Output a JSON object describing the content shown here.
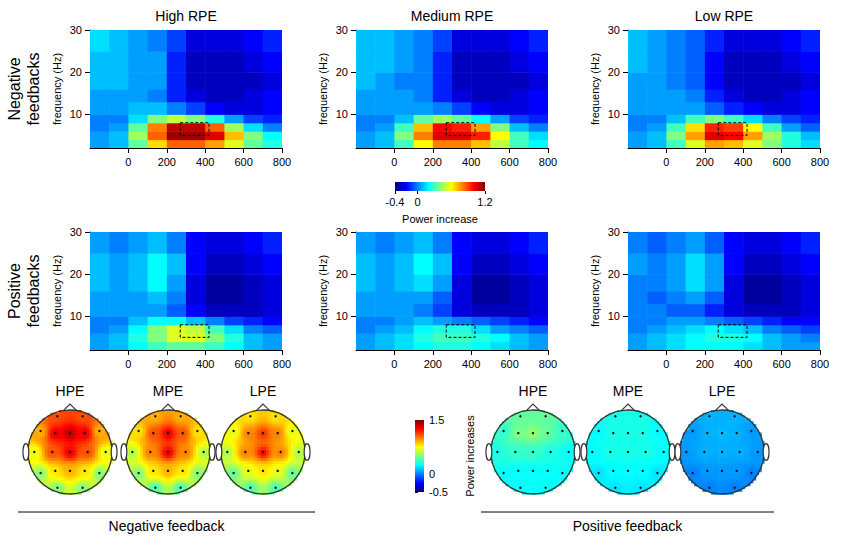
{
  "chart_data": [
    {
      "type": "heatmap",
      "columns": [
        "High RPE",
        "Medium RPE",
        "Low RPE"
      ],
      "rows": [
        "Negative feedbacks",
        "Positive feedbacks"
      ],
      "xlim": [
        -200,
        800
      ],
      "xticks": [
        0,
        200,
        400,
        600,
        800
      ],
      "ylim": [
        2,
        30
      ],
      "yticks": [
        10,
        20,
        30
      ],
      "y_label": "frequency (Hz)",
      "time_edges": [
        -200,
        -100,
        0,
        100,
        200,
        300,
        400,
        500,
        600,
        700,
        800
      ],
      "freq_edges": [
        2,
        4,
        6,
        8,
        10,
        13,
        16,
        20,
        25,
        30
      ],
      "window": {
        "time": [
          270,
          420
        ],
        "freq": [
          5,
          8
        ]
      },
      "colorbar": {
        "label": "Power increase",
        "range": [
          -0.4,
          1.2
        ],
        "ticks": [
          -0.4,
          0,
          1.2
        ]
      },
      "panels": [
        [
          [
            [
              0.05,
              0.1,
              0.35,
              0.65,
              0.85,
              0.85,
              0.75,
              0.55,
              0.35,
              0.25
            ],
            [
              0.05,
              0.1,
              0.45,
              0.85,
              1.15,
              1.15,
              1.05,
              0.7,
              0.4,
              0.2
            ],
            [
              0.0,
              0.05,
              0.35,
              0.8,
              1.1,
              1.1,
              0.85,
              0.45,
              0.15,
              0.0
            ],
            [
              0.0,
              0.0,
              0.15,
              0.4,
              0.5,
              0.4,
              0.25,
              0.05,
              -0.1,
              -0.15
            ],
            [
              0.05,
              0.05,
              0.1,
              0.1,
              0.0,
              -0.1,
              -0.2,
              -0.25,
              -0.25,
              -0.2
            ],
            [
              0.05,
              0.05,
              0.05,
              0.0,
              -0.15,
              -0.25,
              -0.3,
              -0.3,
              -0.25,
              -0.2
            ],
            [
              0.1,
              0.1,
              0.05,
              0.05,
              -0.15,
              -0.3,
              -0.3,
              -0.3,
              -0.3,
              -0.25
            ],
            [
              0.1,
              0.1,
              0.05,
              0.05,
              -0.15,
              -0.3,
              -0.3,
              -0.3,
              -0.25,
              -0.2
            ],
            [
              0.15,
              0.1,
              0.05,
              0.0,
              -0.1,
              -0.25,
              -0.25,
              -0.25,
              -0.2,
              -0.15
            ]
          ],
          [
            [
              0.05,
              0.1,
              0.3,
              0.6,
              0.8,
              0.8,
              0.7,
              0.5,
              0.3,
              0.2
            ],
            [
              0.05,
              0.1,
              0.4,
              0.8,
              1.05,
              1.05,
              0.95,
              0.6,
              0.3,
              0.15
            ],
            [
              0.0,
              0.05,
              0.3,
              0.7,
              1.0,
              0.95,
              0.75,
              0.4,
              0.1,
              0.0
            ],
            [
              0.0,
              0.0,
              0.1,
              0.35,
              0.45,
              0.35,
              0.2,
              0.05,
              -0.1,
              -0.15
            ],
            [
              0.05,
              0.05,
              0.05,
              0.05,
              0.0,
              -0.1,
              -0.2,
              -0.25,
              -0.25,
              -0.2
            ],
            [
              0.05,
              0.05,
              0.05,
              0.0,
              -0.15,
              -0.25,
              -0.3,
              -0.3,
              -0.25,
              -0.2
            ],
            [
              0.1,
              0.05,
              0.0,
              0.0,
              -0.15,
              -0.3,
              -0.3,
              -0.3,
              -0.3,
              -0.25
            ],
            [
              0.1,
              0.1,
              0.05,
              0.0,
              -0.15,
              -0.3,
              -0.3,
              -0.3,
              -0.25,
              -0.2
            ],
            [
              0.1,
              0.1,
              0.05,
              0.0,
              -0.1,
              -0.25,
              -0.25,
              -0.25,
              -0.2,
              -0.15
            ]
          ],
          [
            [
              0.05,
              0.1,
              0.3,
              0.55,
              0.75,
              0.7,
              0.55,
              0.4,
              0.25,
              0.15
            ],
            [
              0.05,
              0.1,
              0.4,
              0.75,
              1.05,
              1.0,
              0.75,
              0.45,
              0.25,
              0.1
            ],
            [
              0.0,
              0.05,
              0.3,
              0.65,
              0.95,
              0.9,
              0.6,
              0.3,
              0.05,
              -0.05
            ],
            [
              0.0,
              0.0,
              0.1,
              0.3,
              0.4,
              0.3,
              0.15,
              0.0,
              -0.1,
              -0.15
            ],
            [
              0.05,
              0.05,
              0.05,
              0.05,
              -0.05,
              -0.15,
              -0.2,
              -0.25,
              -0.25,
              -0.2
            ],
            [
              0.05,
              0.05,
              0.05,
              0.0,
              -0.15,
              -0.25,
              -0.3,
              -0.3,
              -0.25,
              -0.2
            ],
            [
              0.05,
              0.05,
              0.0,
              -0.05,
              -0.2,
              -0.3,
              -0.3,
              -0.3,
              -0.3,
              -0.25
            ],
            [
              0.1,
              0.05,
              0.0,
              -0.05,
              -0.2,
              -0.3,
              -0.3,
              -0.3,
              -0.25,
              -0.2
            ],
            [
              0.1,
              0.05,
              0.0,
              -0.05,
              -0.15,
              -0.25,
              -0.25,
              -0.25,
              -0.2,
              -0.15
            ]
          ]
        ],
        [
          [
            [
              0.05,
              0.1,
              0.2,
              0.3,
              0.35,
              0.35,
              0.3,
              0.2,
              0.1,
              0.05
            ],
            [
              0.05,
              0.1,
              0.25,
              0.4,
              0.55,
              0.55,
              0.4,
              0.25,
              0.1,
              0.05
            ],
            [
              0.0,
              0.05,
              0.2,
              0.4,
              0.55,
              0.5,
              0.3,
              0.15,
              0.0,
              -0.05
            ],
            [
              0.0,
              0.0,
              0.1,
              0.2,
              0.2,
              0.1,
              0.0,
              -0.1,
              -0.15,
              -0.2
            ],
            [
              0.05,
              0.05,
              0.05,
              0.05,
              -0.05,
              -0.2,
              -0.3,
              -0.3,
              -0.3,
              -0.25
            ],
            [
              0.05,
              0.05,
              0.05,
              0.1,
              0.0,
              -0.25,
              -0.35,
              -0.35,
              -0.3,
              -0.25
            ],
            [
              0.1,
              0.05,
              0.1,
              0.2,
              0.05,
              -0.25,
              -0.35,
              -0.35,
              -0.3,
              -0.25
            ],
            [
              0.1,
              0.05,
              0.1,
              0.2,
              0.1,
              -0.2,
              -0.3,
              -0.3,
              -0.25,
              -0.2
            ],
            [
              0.05,
              0.0,
              0.05,
              0.1,
              0.0,
              -0.2,
              -0.25,
              -0.25,
              -0.2,
              -0.15
            ]
          ],
          [
            [
              0.05,
              0.1,
              0.15,
              0.2,
              0.25,
              0.25,
              0.2,
              0.15,
              0.1,
              0.05
            ],
            [
              0.05,
              0.1,
              0.15,
              0.25,
              0.3,
              0.3,
              0.25,
              0.2,
              0.1,
              0.05
            ],
            [
              0.0,
              0.05,
              0.1,
              0.2,
              0.25,
              0.25,
              0.15,
              0.05,
              0.0,
              -0.05
            ],
            [
              0.0,
              0.0,
              0.05,
              0.1,
              0.05,
              0.0,
              -0.05,
              -0.1,
              -0.15,
              -0.2
            ],
            [
              0.05,
              0.05,
              0.05,
              0.0,
              -0.1,
              -0.25,
              -0.3,
              -0.3,
              -0.3,
              -0.25
            ],
            [
              0.05,
              0.05,
              0.05,
              0.05,
              -0.05,
              -0.25,
              -0.35,
              -0.35,
              -0.3,
              -0.25
            ],
            [
              0.1,
              0.05,
              0.1,
              0.15,
              0.05,
              -0.25,
              -0.35,
              -0.35,
              -0.3,
              -0.25
            ],
            [
              0.1,
              0.05,
              0.1,
              0.2,
              0.1,
              -0.2,
              -0.3,
              -0.3,
              -0.25,
              -0.2
            ],
            [
              0.05,
              0.0,
              0.05,
              0.1,
              0.0,
              -0.2,
              -0.25,
              -0.25,
              -0.2,
              -0.15
            ]
          ],
          [
            [
              0.05,
              0.1,
              0.15,
              0.2,
              0.2,
              0.2,
              0.15,
              0.1,
              0.05,
              0.05
            ],
            [
              0.05,
              0.1,
              0.15,
              0.2,
              0.25,
              0.25,
              0.2,
              0.1,
              0.05,
              0.0
            ],
            [
              0.0,
              0.05,
              0.1,
              0.15,
              0.2,
              0.15,
              0.1,
              0.0,
              -0.05,
              -0.1
            ],
            [
              0.0,
              0.0,
              0.05,
              0.05,
              0.0,
              -0.05,
              -0.1,
              -0.15,
              -0.2,
              -0.2
            ],
            [
              0.0,
              0.0,
              -0.05,
              -0.05,
              -0.15,
              -0.25,
              -0.3,
              -0.3,
              -0.3,
              -0.25
            ],
            [
              0.0,
              -0.05,
              0.0,
              0.05,
              -0.05,
              -0.25,
              -0.35,
              -0.35,
              -0.3,
              -0.25
            ],
            [
              0.0,
              0.0,
              0.05,
              0.15,
              0.05,
              -0.25,
              -0.35,
              -0.35,
              -0.3,
              -0.25
            ],
            [
              0.05,
              0.0,
              0.05,
              0.15,
              0.05,
              -0.2,
              -0.3,
              -0.3,
              -0.25,
              -0.2
            ],
            [
              0.0,
              -0.05,
              0.0,
              0.05,
              -0.05,
              -0.2,
              -0.25,
              -0.25,
              -0.2,
              -0.15
            ]
          ]
        ]
      ]
    },
    {
      "type": "topomap",
      "colorbar": {
        "label": "Power increases",
        "range": [
          -0.5,
          1.5
        ],
        "ticks": [
          -0.5,
          0,
          1.5
        ]
      },
      "groups": [
        {
          "label": "Negative feedback",
          "maps": [
            {
              "title": "HPE",
              "values": [
                1.1,
                1.1,
                0.9,
                1.3,
                1.4,
                1.3,
                0.9,
                0.7,
                1.1,
                1.3,
                1.1,
                0.7,
                0.5,
                0.8,
                0.9,
                0.8,
                0.5,
                0.5,
                0.5
              ]
            },
            {
              "title": "MPE",
              "values": [
                0.9,
                0.9,
                0.8,
                1.1,
                1.3,
                1.1,
                0.8,
                0.6,
                1.0,
                1.3,
                1.0,
                0.6,
                0.5,
                0.8,
                0.9,
                0.8,
                0.5,
                0.4,
                0.4
              ]
            },
            {
              "title": "LPE",
              "values": [
                0.8,
                0.8,
                0.7,
                1.0,
                1.15,
                1.0,
                0.7,
                0.6,
                1.0,
                1.25,
                1.0,
                0.6,
                0.45,
                0.7,
                0.8,
                0.7,
                0.45,
                0.4,
                0.4
              ]
            }
          ]
        },
        {
          "label": "Positive feedback",
          "maps": [
            {
              "title": "HPE",
              "values": [
                0.45,
                0.45,
                0.35,
                0.5,
                0.55,
                0.45,
                0.35,
                0.3,
                0.35,
                0.35,
                0.3,
                0.25,
                0.25,
                0.25,
                0.25,
                0.25,
                0.25,
                0.25,
                0.25
              ]
            },
            {
              "title": "MPE",
              "values": [
                0.3,
                0.3,
                0.25,
                0.3,
                0.3,
                0.3,
                0.25,
                0.25,
                0.3,
                0.3,
                0.3,
                0.25,
                0.2,
                0.25,
                0.25,
                0.25,
                0.2,
                0.2,
                0.2
              ]
            },
            {
              "title": "LPE",
              "values": [
                0.1,
                0.1,
                0.05,
                0.1,
                0.12,
                0.1,
                0.05,
                0.05,
                0.1,
                0.1,
                0.1,
                0.05,
                0.0,
                0.05,
                0.05,
                0.05,
                0.0,
                0.0,
                0.0
              ]
            }
          ]
        }
      ]
    }
  ]
}
